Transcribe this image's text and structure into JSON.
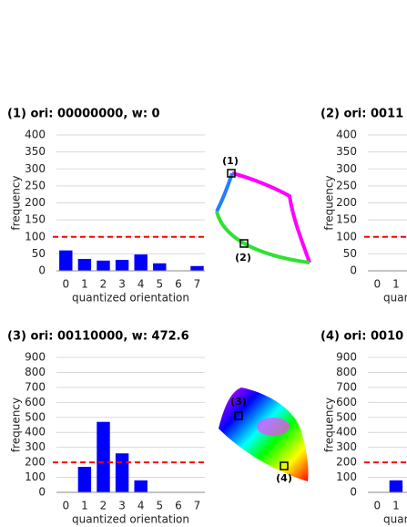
{
  "chart_data": [
    {
      "type": "bar",
      "title": "(1) ori: 00000000, w: 0",
      "x_label": "quantized orientation",
      "y_label": "frequency",
      "categories": [
        "0",
        "1",
        "2",
        "3",
        "4",
        "5",
        "6",
        "7"
      ],
      "values": [
        60,
        35,
        30,
        32,
        48,
        22,
        0,
        14
      ],
      "color": "#0000ff",
      "ylim": [
        0,
        400
      ],
      "yticks": [
        0,
        50,
        100,
        150,
        200,
        250,
        300,
        350,
        400
      ],
      "grid": true,
      "threshold": 100,
      "threshold_color": "#ff0000"
    },
    {
      "type": "bar",
      "title": "(2) ori: 0011",
      "x_label": "quantized orientation",
      "y_label": "frequency",
      "categories": [
        "0",
        "1"
      ],
      "values": [
        0,
        0
      ],
      "color": "#0000ff",
      "ylim": [
        0,
        400
      ],
      "yticks": [
        0,
        50,
        100,
        150,
        200,
        250,
        300,
        350,
        400
      ],
      "grid": true,
      "threshold": 100,
      "threshold_color": "#ff0000"
    },
    {
      "type": "bar",
      "title": "(3) ori: 00110000, w: 472.6",
      "x_label": "quantized orientation",
      "y_label": "frequency",
      "categories": [
        "0",
        "1",
        "2",
        "3",
        "4",
        "5",
        "6",
        "7"
      ],
      "values": [
        0,
        170,
        470,
        260,
        80,
        0,
        0,
        0
      ],
      "color": "#0000ff",
      "ylim": [
        0,
        900
      ],
      "yticks": [
        0,
        100,
        200,
        300,
        400,
        500,
        600,
        700,
        800,
        900
      ],
      "grid": true,
      "threshold": 200,
      "threshold_color": "#ff0000"
    },
    {
      "type": "bar",
      "title": "(4) ori: 0010",
      "x_label": "quantized orientation",
      "y_label": "frequency",
      "categories": [
        "0",
        "1"
      ],
      "values": [
        0,
        80
      ],
      "color": "#0000ff",
      "ylim": [
        0,
        900
      ],
      "yticks": [
        0,
        100,
        200,
        300,
        400,
        500,
        600,
        700,
        800,
        900
      ],
      "grid": true,
      "threshold": 200,
      "threshold_color": "#ff0000"
    }
  ],
  "figure": {
    "markers": [
      "(1)",
      "(2)",
      "(3)",
      "(4)"
    ]
  }
}
